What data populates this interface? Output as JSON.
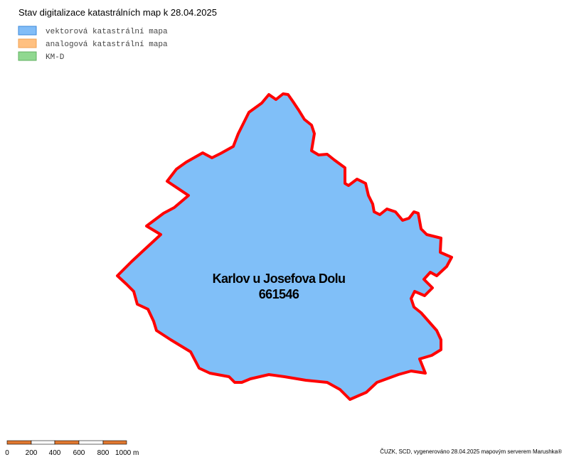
{
  "header": {
    "title": "Stav digitalizace katastrálních map k 28.04.2025"
  },
  "legend": {
    "items": [
      "vektorová katastrální mapa",
      "analogová katastrální mapa",
      "KM-D"
    ]
  },
  "map": {
    "area_name": "Karlov u Josefova Dolu",
    "area_code": "661546"
  },
  "scale_bar": {
    "labels": [
      "0",
      "200",
      "400",
      "600",
      "800",
      "1000 m"
    ]
  },
  "footer": {
    "credit": "ČUZK, SCD, vygenerováno 28.04.2025 mapovým serverem Marushka®"
  }
}
